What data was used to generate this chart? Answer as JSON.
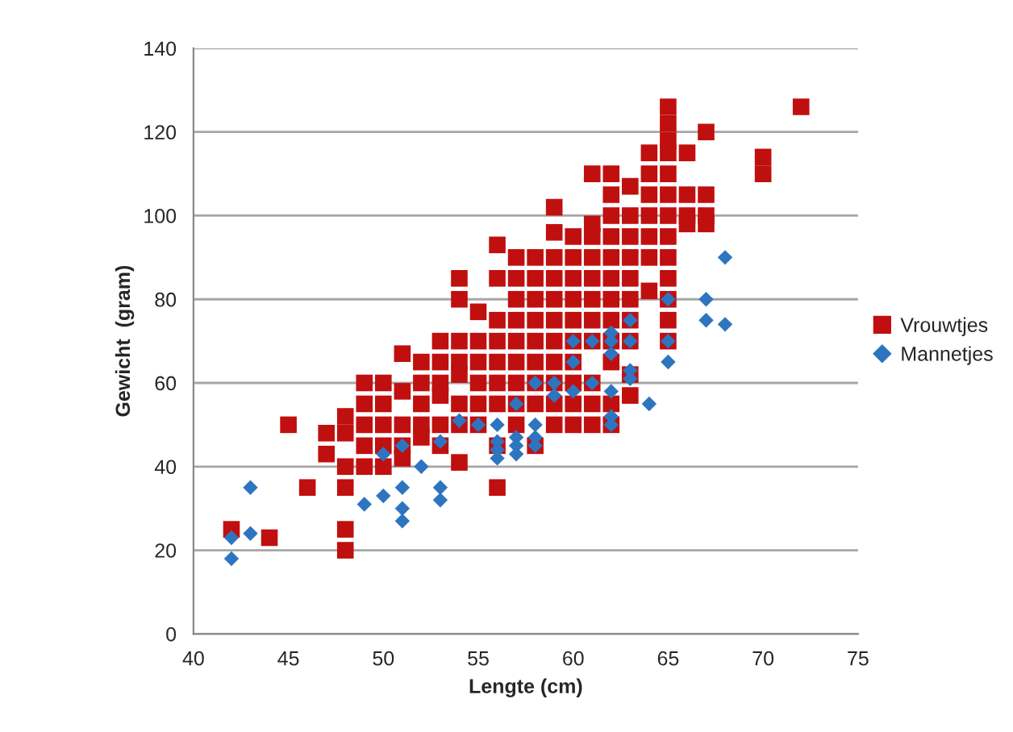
{
  "chart_data": {
    "type": "scatter",
    "xlabel": "Lengte (cm)",
    "ylabel": "Gewicht  (gram)",
    "xlim": [
      40,
      75
    ],
    "xticks": [
      40,
      45,
      50,
      55,
      60,
      65,
      70,
      75
    ],
    "ylim": [
      0,
      140
    ],
    "yticks": [
      0,
      20,
      40,
      60,
      80,
      100,
      120,
      140
    ],
    "grid": "y",
    "legend": "right",
    "series": [
      {
        "name": "Vrouwtjes",
        "color": "#c00f0f",
        "marker": "square",
        "x": [
          42,
          44,
          45,
          46,
          47,
          47,
          48,
          48,
          48,
          48,
          48,
          48,
          49,
          49,
          49,
          49,
          49,
          50,
          50,
          50,
          50,
          50,
          51,
          51,
          51,
          51,
          51,
          52,
          52,
          52,
          52,
          52,
          53,
          53,
          53,
          53,
          53,
          53,
          54,
          54,
          54,
          54,
          54,
          54,
          54,
          54,
          55,
          55,
          55,
          55,
          55,
          55,
          56,
          56,
          56,
          56,
          56,
          56,
          56,
          56,
          56,
          57,
          57,
          57,
          57,
          57,
          57,
          57,
          57,
          57,
          58,
          58,
          58,
          58,
          58,
          58,
          58,
          58,
          58,
          59,
          59,
          59,
          59,
          59,
          59,
          59,
          59,
          59,
          59,
          59,
          60,
          60,
          60,
          60,
          60,
          60,
          60,
          60,
          60,
          60,
          61,
          61,
          61,
          61,
          61,
          61,
          61,
          61,
          61,
          61,
          61,
          62,
          62,
          62,
          62,
          62,
          62,
          62,
          62,
          62,
          62,
          62,
          62,
          63,
          63,
          63,
          63,
          63,
          63,
          63,
          63,
          63,
          63,
          64,
          64,
          64,
          64,
          64,
          64,
          64,
          65,
          65,
          65,
          65,
          65,
          65,
          65,
          65,
          65,
          65,
          65,
          65,
          65,
          66,
          66,
          66,
          66,
          67,
          67,
          67,
          67,
          70,
          70,
          72
        ],
        "values": [
          25,
          23,
          50,
          35,
          48,
          43,
          52,
          48,
          40,
          35,
          25,
          20,
          60,
          55,
          50,
          45,
          40,
          60,
          55,
          50,
          45,
          40,
          67,
          58,
          50,
          45,
          42,
          65,
          60,
          55,
          50,
          47,
          70,
          65,
          60,
          57,
          50,
          45,
          85,
          80,
          70,
          65,
          62,
          55,
          50,
          41,
          77,
          70,
          65,
          60,
          55,
          50,
          93,
          85,
          75,
          70,
          65,
          60,
          55,
          45,
          35,
          90,
          85,
          80,
          75,
          70,
          65,
          60,
          55,
          50,
          90,
          85,
          80,
          75,
          70,
          65,
          60,
          55,
          45,
          102,
          96,
          90,
          85,
          80,
          75,
          70,
          65,
          60,
          55,
          50,
          95,
          90,
          85,
          80,
          75,
          70,
          65,
          60,
          55,
          50,
          110,
          98,
          95,
          90,
          85,
          80,
          75,
          70,
          60,
          55,
          50,
          110,
          105,
          100,
          95,
          90,
          85,
          80,
          75,
          70,
          65,
          55,
          50,
          107,
          100,
          95,
          90,
          85,
          80,
          75,
          70,
          62,
          57,
          115,
          110,
          105,
          100,
          95,
          90,
          82,
          126,
          122,
          118,
          115,
          110,
          105,
          100,
          95,
          90,
          85,
          80,
          75,
          70,
          115,
          105,
          100,
          98,
          120,
          105,
          100,
          98,
          114,
          110,
          126
        ]
      },
      {
        "name": "Mannetjes",
        "color": "#2e75c0",
        "marker": "diamond",
        "x": [
          42,
          42,
          43,
          43,
          49,
          50,
          50,
          51,
          51,
          51,
          51,
          52,
          53,
          53,
          53,
          54,
          55,
          56,
          56,
          56,
          56,
          57,
          57,
          57,
          57,
          58,
          58,
          58,
          58,
          59,
          59,
          60,
          60,
          60,
          61,
          61,
          62,
          62,
          62,
          62,
          62,
          62,
          63,
          63,
          63,
          63,
          64,
          65,
          65,
          65,
          67,
          67,
          68,
          68
        ],
        "values": [
          23,
          18,
          35,
          24,
          31,
          33,
          43,
          45,
          35,
          30,
          27,
          40,
          35,
          32,
          46,
          51,
          50,
          46,
          44,
          42,
          50,
          47,
          45,
          43,
          55,
          50,
          47,
          45,
          60,
          60,
          57,
          70,
          65,
          58,
          60,
          70,
          72,
          70,
          67,
          58,
          52,
          50,
          63,
          61,
          75,
          70,
          55,
          65,
          80,
          70,
          80,
          75,
          90,
          74
        ]
      }
    ]
  }
}
